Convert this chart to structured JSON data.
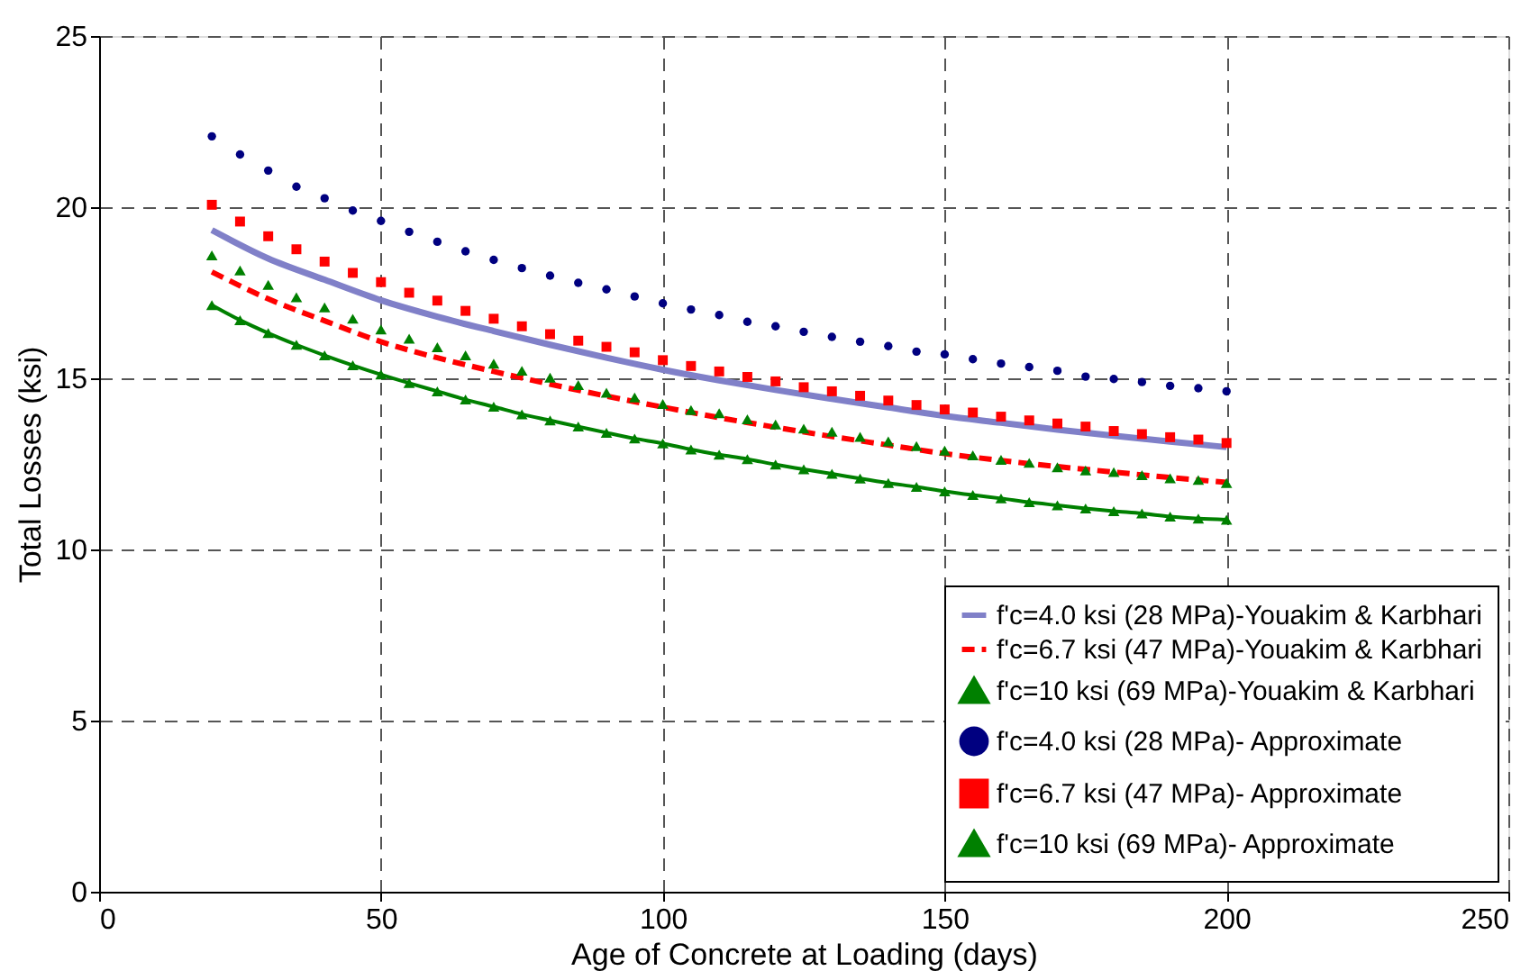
{
  "chart_data": {
    "type": "line",
    "xlabel": "Age of Concrete at Loading (days)",
    "ylabel": "Total Losses (ksi)",
    "xlim": [
      0,
      250
    ],
    "xticks": [
      0,
      50,
      100,
      150,
      200,
      250
    ],
    "ylim": [
      0,
      25
    ],
    "yticks": [
      0,
      5,
      10,
      15,
      20,
      25
    ],
    "grid": true,
    "legend": "bottom right",
    "series": [
      {
        "name": "f'c=4.0 ksi (28 MPa)-Youakim & Karbhari",
        "marker": "none",
        "line_style": "solid",
        "color": "#8080c8",
        "x": [
          20,
          30,
          40,
          50,
          60,
          70,
          80,
          90,
          100,
          110,
          120,
          130,
          140,
          150,
          160,
          170,
          180,
          190,
          200
        ],
        "values": [
          19.33,
          18.5,
          17.88,
          17.28,
          16.8,
          16.38,
          15.98,
          15.6,
          15.25,
          14.94,
          14.66,
          14.4,
          14.15,
          13.9,
          13.7,
          13.5,
          13.32,
          13.15,
          12.99
        ]
      },
      {
        "name": "f'c=6.7 ksi (47 MPa)-Youakim & Karbhari",
        "marker": "none",
        "line_style": "dashed",
        "color": "#ff0000",
        "x": [
          20,
          30,
          40,
          50,
          60,
          70,
          80,
          90,
          100,
          110,
          120,
          130,
          140,
          150,
          160,
          170,
          180,
          190,
          200
        ],
        "values": [
          18.11,
          17.32,
          16.68,
          16.07,
          15.6,
          15.2,
          14.83,
          14.48,
          14.16,
          13.85,
          13.57,
          13.3,
          13.05,
          12.8,
          12.6,
          12.42,
          12.26,
          12.1,
          11.96
        ]
      },
      {
        "name": "f'c=10  ksi (69 MPa)-Youakim & Karbhari",
        "marker": "triangle",
        "line_style": "solid",
        "color": "#008000",
        "x": [
          20,
          25,
          30,
          35,
          40,
          45,
          50,
          55,
          60,
          65,
          70,
          75,
          80,
          85,
          90,
          95,
          100,
          105,
          110,
          115,
          120,
          125,
          130,
          135,
          140,
          145,
          150,
          155,
          160,
          165,
          170,
          175,
          180,
          185,
          190,
          195,
          200
        ],
        "values": [
          17.14,
          16.7,
          16.32,
          15.98,
          15.67,
          15.38,
          15.11,
          14.86,
          14.62,
          14.38,
          14.17,
          13.95,
          13.77,
          13.59,
          13.41,
          13.24,
          13.1,
          12.92,
          12.77,
          12.64,
          12.48,
          12.34,
          12.21,
          12.07,
          11.94,
          11.83,
          11.7,
          11.59,
          11.49,
          11.38,
          11.29,
          11.2,
          11.12,
          11.05,
          10.96,
          10.9,
          10.87
        ]
      },
      {
        "name": "f'c=4.0 ksi (28 MPa)- Approximate",
        "type": "scatter",
        "marker": "circle",
        "color": "#000080",
        "x": [
          20,
          25,
          30,
          35,
          40,
          45,
          50,
          55,
          60,
          65,
          70,
          75,
          80,
          85,
          90,
          95,
          100,
          105,
          110,
          115,
          120,
          125,
          130,
          135,
          140,
          145,
          150,
          155,
          160,
          165,
          170,
          175,
          180,
          185,
          190,
          195,
          200
        ],
        "values": [
          22.07,
          21.54,
          21.07,
          20.6,
          20.26,
          19.9,
          19.6,
          19.28,
          18.99,
          18.71,
          18.46,
          18.22,
          18.0,
          17.79,
          17.6,
          17.39,
          17.19,
          17.01,
          16.85,
          16.65,
          16.52,
          16.36,
          16.21,
          16.07,
          15.94,
          15.78,
          15.7,
          15.56,
          15.43,
          15.33,
          15.22,
          15.05,
          14.98,
          14.89,
          14.78,
          14.71,
          14.62
        ]
      },
      {
        "name": "f'c=6.7 ksi (47 MPa)- Approximate",
        "type": "scatter",
        "marker": "square",
        "color": "#ff0000",
        "x": [
          20,
          25,
          30,
          35,
          40,
          45,
          50,
          55,
          60,
          65,
          70,
          75,
          80,
          85,
          90,
          95,
          100,
          105,
          110,
          115,
          120,
          125,
          130,
          135,
          140,
          145,
          150,
          155,
          160,
          165,
          170,
          175,
          180,
          185,
          190,
          195,
          200
        ],
        "values": [
          20.07,
          19.58,
          19.15,
          18.77,
          18.41,
          18.08,
          17.81,
          17.5,
          17.27,
          16.97,
          16.74,
          16.52,
          16.29,
          16.1,
          15.92,
          15.76,
          15.53,
          15.36,
          15.2,
          15.04,
          14.91,
          14.74,
          14.62,
          14.49,
          14.35,
          14.22,
          14.09,
          14.0,
          13.88,
          13.77,
          13.68,
          13.59,
          13.46,
          13.37,
          13.28,
          13.21,
          13.11
        ]
      },
      {
        "name": "f'c=10  ksi (69 MPa)- Approximate",
        "type": "scatter",
        "marker": "triangle",
        "color": "#008000",
        "x": [
          20,
          25,
          30,
          35,
          40,
          45,
          50,
          55,
          60,
          65,
          70,
          75,
          80,
          85,
          90,
          95,
          100,
          105,
          110,
          115,
          120,
          125,
          130,
          135,
          140,
          145,
          150,
          155,
          160,
          165,
          170,
          175,
          180,
          185,
          190,
          195,
          200
        ],
        "values": [
          18.59,
          18.15,
          17.73,
          17.37,
          17.07,
          16.74,
          16.43,
          16.16,
          15.91,
          15.67,
          15.43,
          15.22,
          15.02,
          14.8,
          14.58,
          14.44,
          14.25,
          14.07,
          13.98,
          13.8,
          13.65,
          13.53,
          13.44,
          13.29,
          13.16,
          13.02,
          12.89,
          12.75,
          12.62,
          12.53,
          12.4,
          12.31,
          12.26,
          12.17,
          12.08,
          12.03,
          11.94
        ]
      }
    ]
  }
}
